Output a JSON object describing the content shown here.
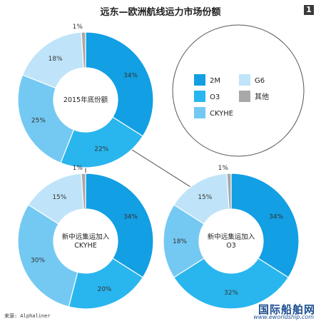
{
  "title": "远东—欧洲航线运力市场份额",
  "page_number": "1",
  "source": "来源: Alphaliner",
  "watermark": {
    "cn": "国际船舶网",
    "url": "www.eworldship.com"
  },
  "colors": {
    "2M": "#129fe4",
    "O3": "#29b6ee",
    "CKYHE": "#74c9f2",
    "G6": "#bfe4f9",
    "其他": "#a8a8a8"
  },
  "legend": [
    {
      "key": "2M",
      "label": "2M"
    },
    {
      "key": "G6",
      "label": "G6"
    },
    {
      "key": "O3",
      "label": "O3"
    },
    {
      "key": "其他",
      "label": "其他"
    },
    {
      "key": "CKYHE",
      "label": "CKYHE"
    }
  ],
  "chart_data": [
    {
      "type": "pie",
      "center_label": [
        "2015年底份额"
      ],
      "slices": [
        {
          "name": "2M",
          "value": 34,
          "label": "34%"
        },
        {
          "name": "O3",
          "value": 22,
          "label": "22%"
        },
        {
          "name": "CKYHE",
          "value": 25,
          "label": "25%"
        },
        {
          "name": "G6",
          "value": 18,
          "label": "18%"
        },
        {
          "name": "其他",
          "value": 1,
          "label": "1%"
        }
      ]
    },
    {
      "type": "pie",
      "center_label": [
        "新中远集运加入",
        "CKYHE"
      ],
      "slices": [
        {
          "name": "2M",
          "value": 34,
          "label": "34%"
        },
        {
          "name": "O3",
          "value": 20,
          "label": "20%"
        },
        {
          "name": "CKYHE",
          "value": 30,
          "label": "30%"
        },
        {
          "name": "G6",
          "value": 15,
          "label": "15%"
        },
        {
          "name": "其他",
          "value": 1,
          "label": "1%"
        }
      ]
    },
    {
      "type": "pie",
      "center_label": [
        "新中远集运加入",
        "O3"
      ],
      "slices": [
        {
          "name": "2M",
          "value": 34,
          "label": "34%"
        },
        {
          "name": "O3",
          "value": 32,
          "label": "32%"
        },
        {
          "name": "CKYHE",
          "value": 18,
          "label": "18%"
        },
        {
          "name": "G6",
          "value": 15,
          "label": "15%"
        },
        {
          "name": "其他",
          "value": 1,
          "label": "1%"
        }
      ]
    }
  ]
}
